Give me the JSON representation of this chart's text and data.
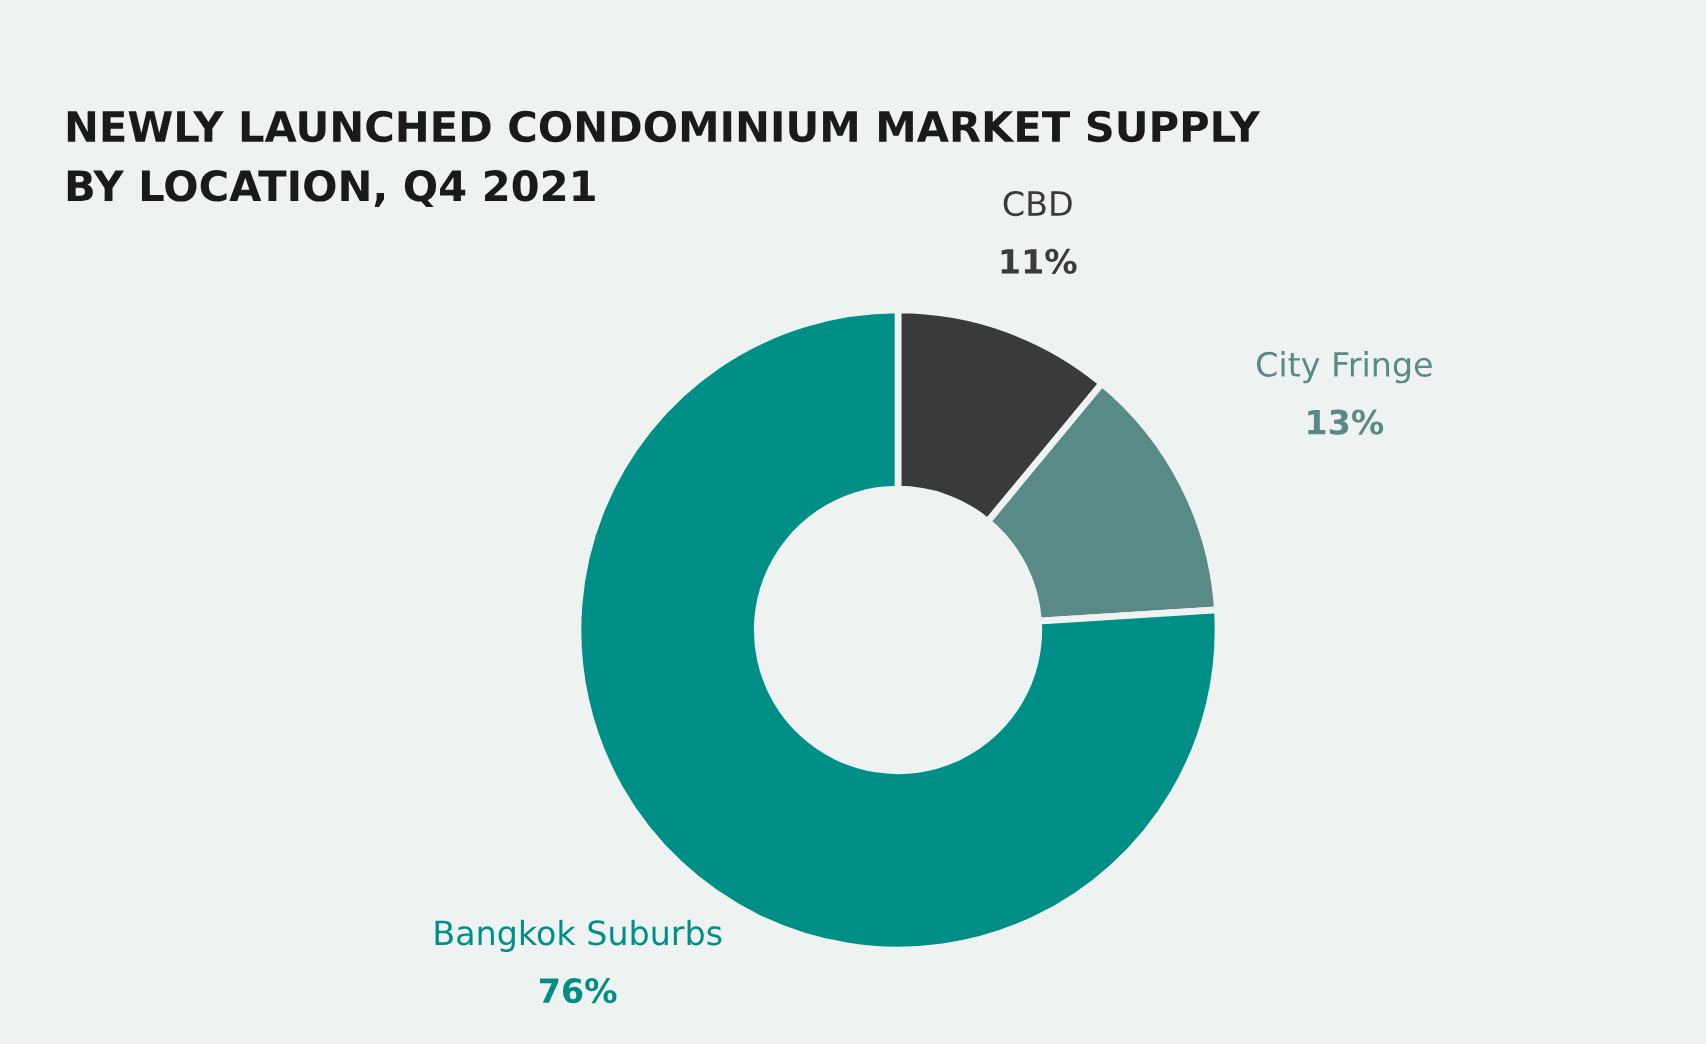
{
  "chart_data": {
    "type": "donut",
    "title": "NEWLY LAUNCHED CONDOMINIUM MARKET SUPPLY\nBY LOCATION, Q4 2021",
    "categories": [
      "CBD",
      "City Fringe",
      "Bangkok Suburbs"
    ],
    "values": [
      11,
      13,
      76
    ],
    "colors": [
      "#3a3a3c",
      "#5a8a87",
      "#008f87"
    ],
    "value_labels": [
      "11%",
      "13%",
      "76%"
    ],
    "legend": false
  }
}
